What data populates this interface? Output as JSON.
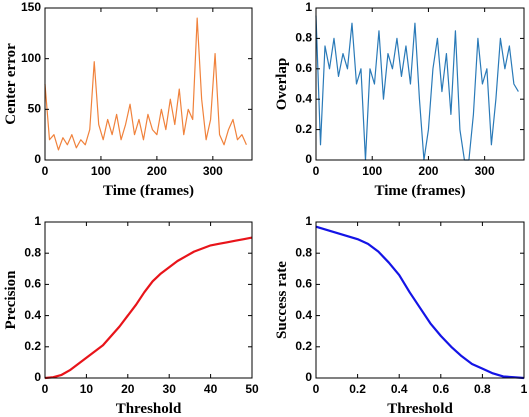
{
  "chart_data": [
    {
      "type": "line",
      "xlabel": "Time (frames)",
      "ylabel": "Center error",
      "color": "#f0823c",
      "xlim": [
        0,
        370
      ],
      "xticks": [
        0,
        100,
        200,
        300
      ],
      "ylim": [
        0,
        150
      ],
      "yticks": [
        0,
        50,
        100,
        150
      ],
      "x": [
        0,
        8,
        16,
        24,
        32,
        40,
        48,
        56,
        64,
        72,
        80,
        88,
        96,
        104,
        112,
        120,
        128,
        136,
        144,
        152,
        160,
        168,
        176,
        184,
        192,
        200,
        208,
        216,
        224,
        232,
        240,
        248,
        256,
        264,
        272,
        280,
        288,
        296,
        304,
        312,
        320,
        328,
        336,
        344,
        352,
        360
      ],
      "values": [
        75,
        20,
        25,
        10,
        22,
        15,
        25,
        12,
        20,
        15,
        30,
        97,
        35,
        20,
        40,
        25,
        45,
        20,
        35,
        55,
        25,
        40,
        20,
        45,
        30,
        25,
        50,
        30,
        60,
        35,
        70,
        25,
        50,
        40,
        140,
        60,
        20,
        40,
        105,
        25,
        15,
        30,
        40,
        20,
        25,
        15
      ]
    },
    {
      "type": "line",
      "xlabel": "Time (frames)",
      "ylabel": "Overlap",
      "color": "#2a7ab8",
      "xlim": [
        0,
        370
      ],
      "xticks": [
        0,
        100,
        200,
        300
      ],
      "ylim": [
        0,
        1
      ],
      "yticks": [
        0,
        0.2,
        0.4,
        0.6,
        0.8,
        1
      ],
      "x": [
        0,
        8,
        16,
        24,
        32,
        40,
        48,
        56,
        64,
        72,
        80,
        88,
        96,
        104,
        112,
        120,
        128,
        136,
        144,
        152,
        160,
        168,
        176,
        184,
        192,
        200,
        208,
        216,
        224,
        232,
        240,
        248,
        256,
        264,
        272,
        280,
        288,
        296,
        304,
        312,
        320,
        328,
        336,
        344,
        352,
        360
      ],
      "values": [
        0.95,
        0.1,
        0.75,
        0.6,
        0.8,
        0.55,
        0.7,
        0.6,
        0.9,
        0.5,
        0.6,
        0.0,
        0.6,
        0.5,
        0.85,
        0.4,
        0.7,
        0.6,
        0.8,
        0.55,
        0.75,
        0.5,
        0.9,
        0.4,
        0.0,
        0.2,
        0.6,
        0.8,
        0.45,
        0.7,
        0.3,
        0.85,
        0.2,
        0.0,
        0.0,
        0.3,
        0.8,
        0.5,
        0.6,
        0.1,
        0.4,
        0.8,
        0.6,
        0.75,
        0.5,
        0.45
      ]
    },
    {
      "type": "line",
      "xlabel": "Threshold",
      "ylabel": "Precision",
      "color": "#e8141a",
      "xlim": [
        0,
        50
      ],
      "xticks": [
        0,
        10,
        20,
        30,
        40,
        50
      ],
      "ylim": [
        0,
        1
      ],
      "yticks": [
        0,
        0.2,
        0.4,
        0.6,
        0.8,
        1
      ],
      "x": [
        0,
        2,
        4,
        6,
        8,
        10,
        12,
        14,
        16,
        18,
        20,
        22,
        24,
        26,
        28,
        30,
        32,
        34,
        36,
        38,
        40,
        42,
        44,
        46,
        48,
        50
      ],
      "values": [
        0,
        0.005,
        0.02,
        0.05,
        0.09,
        0.13,
        0.17,
        0.21,
        0.27,
        0.33,
        0.4,
        0.47,
        0.55,
        0.62,
        0.67,
        0.71,
        0.75,
        0.78,
        0.81,
        0.83,
        0.85,
        0.86,
        0.87,
        0.88,
        0.89,
        0.9
      ]
    },
    {
      "type": "line",
      "xlabel": "Threshold",
      "ylabel": "Success rate",
      "color": "#1414e6",
      "xlim": [
        0,
        1
      ],
      "xticks": [
        0,
        0.2,
        0.4,
        0.6,
        0.8,
        1
      ],
      "ylim": [
        0,
        1
      ],
      "yticks": [
        0,
        0.2,
        0.4,
        0.6,
        0.8,
        1
      ],
      "x": [
        0,
        0.05,
        0.1,
        0.15,
        0.2,
        0.25,
        0.3,
        0.35,
        0.4,
        0.45,
        0.5,
        0.55,
        0.6,
        0.65,
        0.7,
        0.75,
        0.8,
        0.85,
        0.9,
        0.95,
        1
      ],
      "values": [
        0.97,
        0.95,
        0.93,
        0.91,
        0.89,
        0.86,
        0.81,
        0.74,
        0.66,
        0.55,
        0.45,
        0.35,
        0.27,
        0.2,
        0.14,
        0.09,
        0.06,
        0.03,
        0.01,
        0.005,
        0
      ]
    }
  ]
}
